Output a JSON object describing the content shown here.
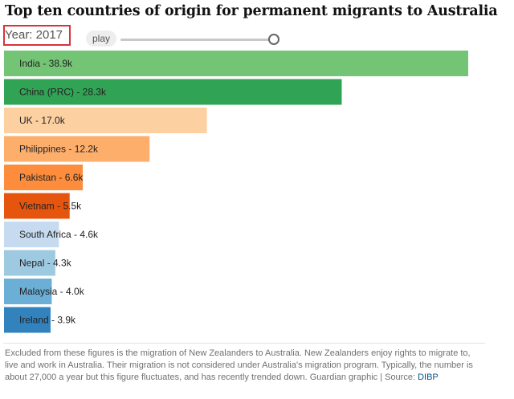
{
  "title": "Top ten countries of origin for permanent migrants to Australia",
  "controls": {
    "year_label": "Year: 2017",
    "play_label": "play",
    "slider_value": 1.0
  },
  "chart_data": {
    "type": "bar",
    "orientation": "horizontal",
    "title": "Top ten countries of origin for permanent migrants to Australia",
    "year": "2017",
    "xlim": [
      0,
      40
    ],
    "units": "thousands",
    "categories": [
      "India",
      "China (PRC)",
      "UK",
      "Philippines",
      "Pakistan",
      "Vietnam",
      "South Africa",
      "Nepal",
      "Malaysia",
      "Ireland"
    ],
    "values": [
      38.9,
      28.3,
      17.0,
      12.2,
      6.6,
      5.5,
      4.6,
      4.3,
      4.0,
      3.9
    ],
    "labels": [
      "India - 38.9k",
      "China (PRC) - 28.3k",
      "UK - 17.0k",
      "Philippines - 12.2k",
      "Pakistan - 6.6k",
      "Vietnam - 5.5k",
      "South Africa - 4.6k",
      "Nepal - 4.3k",
      "Malaysia - 4.0k",
      "Ireland - 3.9k"
    ],
    "colors": [
      "#74c476",
      "#31a354",
      "#fdd0a2",
      "#fdae6b",
      "#fd8d3c",
      "#e6550d",
      "#c6dbef",
      "#9ecae1",
      "#6baed6",
      "#3182bd"
    ]
  },
  "footnote": {
    "text": "Excluded from these figures is the migration of New Zealanders to Australia. New Zealanders enjoy rights to migrate to, live and work in Australia. Their migration is not considered under Australia's migration program. Typically, the number is about 27,000 a year but this figure fluctuates, and has recently trended down. Guardian graphic | Source: ",
    "source_link": "DIBP"
  }
}
